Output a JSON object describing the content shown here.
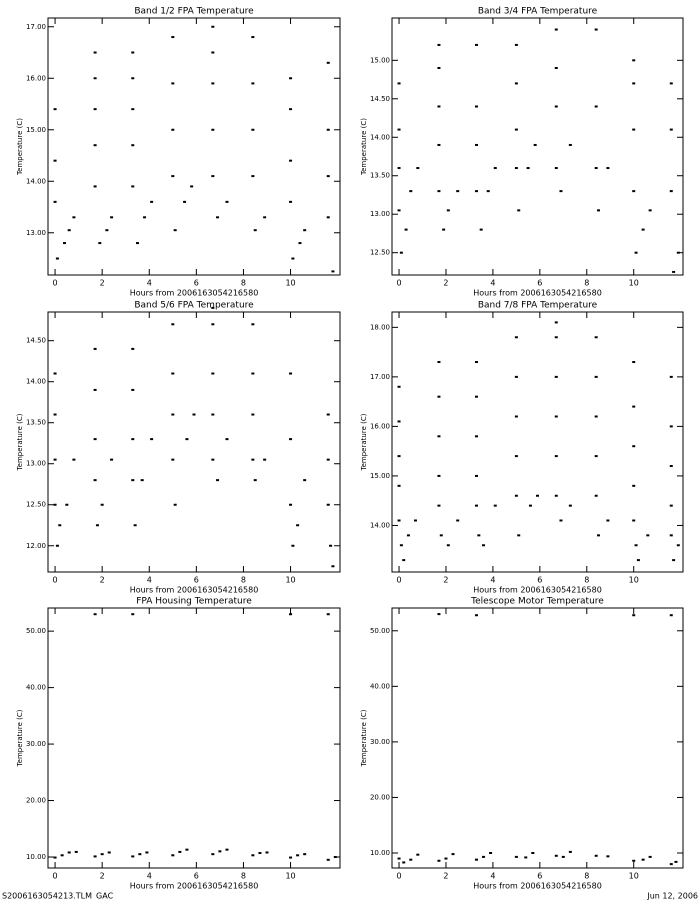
{
  "chart_data": [
    {
      "type": "scatter",
      "title": "Band 1/2 FPA Temperature",
      "xlabel": "Hours from 2006163054216580",
      "ylabel": "Temperature (C)",
      "color": "#000000",
      "xlim": [
        -0.3,
        12.1
      ],
      "xticks": [
        0,
        2,
        4,
        6,
        8,
        10
      ],
      "ylim": [
        12.18,
        17.17
      ],
      "yticks": [
        {
          "value": 13,
          "label": "13.00"
        },
        {
          "value": 14,
          "label": "14.00"
        },
        {
          "value": 15,
          "label": "15.00"
        },
        {
          "value": 16,
          "label": "16.00"
        },
        {
          "value": 17,
          "label": "17.00"
        }
      ],
      "x": [
        0,
        0,
        0,
        0.1,
        0.4,
        0.6,
        0.8,
        1.7,
        1.7,
        1.7,
        1.7,
        1.7,
        1.9,
        2.2,
        2.4,
        3.3,
        3.3,
        3.3,
        3.3,
        3.3,
        3.5,
        3.8,
        4.1,
        5,
        5,
        5,
        5,
        5.1,
        5.5,
        5.8,
        6.7,
        6.7,
        6.7,
        6.7,
        6.7,
        6.9,
        7.3,
        8.4,
        8.4,
        8.4,
        8.4,
        8.5,
        8.9,
        10,
        10,
        10,
        10,
        10.1,
        10.4,
        10.6,
        11.6,
        11.6,
        11.6,
        11.6,
        11.8
      ],
      "values": [
        13.6,
        14.4,
        15.4,
        12.5,
        12.8,
        13.05,
        13.3,
        13.9,
        14.7,
        15.4,
        16,
        16.5,
        12.8,
        13.05,
        13.3,
        13.9,
        14.7,
        15.4,
        16,
        16.5,
        12.8,
        13.3,
        13.6,
        14.1,
        15,
        15.9,
        16.8,
        13.05,
        13.6,
        13.9,
        14.1,
        15,
        15.9,
        16.5,
        17,
        13.3,
        13.6,
        14.1,
        15,
        15.9,
        16.8,
        13.05,
        13.3,
        13.6,
        14.4,
        15.4,
        16,
        12.5,
        12.8,
        13.05,
        13.3,
        14.1,
        15,
        16.3,
        12.25
      ]
    },
    {
      "type": "scatter",
      "title": "Band 3/4 FPA Temperature",
      "xlabel": "Hours from 2006163054216580",
      "ylabel": "Temperature (C)",
      "color": "#000000",
      "xlim": [
        -0.3,
        12.1
      ],
      "xticks": [
        0,
        2,
        4,
        6,
        8,
        10
      ],
      "ylim": [
        12.21,
        15.55
      ],
      "yticks": [
        {
          "value": 12.5,
          "label": "12.50"
        },
        {
          "value": 13,
          "label": "13.00"
        },
        {
          "value": 13.5,
          "label": "13.50"
        },
        {
          "value": 14,
          "label": "14.00"
        },
        {
          "value": 14.5,
          "label": "14.50"
        },
        {
          "value": 15,
          "label": "15.00"
        }
      ],
      "x": [
        0,
        0,
        0,
        0,
        0.1,
        0.3,
        0.5,
        0.8,
        1.7,
        1.7,
        1.7,
        1.7,
        1.7,
        1.9,
        2.1,
        2.5,
        3.3,
        3.3,
        3.3,
        3.3,
        3.5,
        3.8,
        4.1,
        5,
        5,
        5,
        5,
        5.1,
        5.5,
        5.8,
        6.7,
        6.7,
        6.7,
        6.7,
        6.9,
        7.3,
        8.4,
        8.4,
        8.4,
        8.5,
        8.9,
        10,
        10,
        10,
        10,
        10.1,
        10.4,
        10.7,
        11.6,
        11.6,
        11.6,
        11.7,
        11.9
      ],
      "values": [
        13.05,
        13.6,
        14.1,
        14.7,
        12.5,
        12.8,
        13.3,
        13.6,
        13.3,
        13.9,
        14.4,
        14.9,
        15.2,
        12.8,
        13.05,
        13.3,
        13.3,
        13.9,
        14.4,
        15.2,
        12.8,
        13.3,
        13.6,
        13.6,
        14.1,
        14.7,
        15.2,
        13.05,
        13.6,
        13.9,
        13.6,
        14.4,
        14.9,
        15.4,
        13.3,
        13.9,
        13.6,
        14.4,
        15.4,
        13.05,
        13.6,
        13.3,
        14.1,
        14.7,
        15,
        12.5,
        12.8,
        13.05,
        13.3,
        14.1,
        14.7,
        12.25,
        12.5
      ]
    },
    {
      "type": "scatter",
      "title": "Band 5/6 FPA Temperature",
      "xlabel": "Hours from 2006163054216580",
      "ylabel": "Temperature (C)",
      "color": "#000000",
      "xlim": [
        -0.3,
        12.1
      ],
      "xticks": [
        0,
        2,
        4,
        6,
        8,
        10
      ],
      "ylim": [
        11.68,
        14.85
      ],
      "yticks": [
        {
          "value": 12,
          "label": "12.00"
        },
        {
          "value": 12.5,
          "label": "12.50"
        },
        {
          "value": 13,
          "label": "13.00"
        },
        {
          "value": 13.5,
          "label": "13.50"
        },
        {
          "value": 14,
          "label": "14.00"
        },
        {
          "value": 14.5,
          "label": "14.50"
        }
      ],
      "x": [
        0,
        0,
        0,
        0,
        0.1,
        0.2,
        0.5,
        0.8,
        1.7,
        1.7,
        1.7,
        1.7,
        1.8,
        2,
        2.4,
        3.3,
        3.3,
        3.3,
        3.3,
        3.4,
        3.7,
        4.1,
        5,
        5,
        5,
        5,
        5.1,
        5.6,
        5.9,
        6.7,
        6.7,
        6.7,
        6.7,
        6.7,
        6.9,
        7.3,
        8.4,
        8.4,
        8.4,
        8.4,
        8.5,
        8.9,
        10,
        10,
        10,
        10.1,
        10.3,
        10.6,
        11.6,
        11.6,
        11.6,
        11.7,
        11.8
      ],
      "values": [
        12.5,
        13.05,
        13.6,
        14.1,
        12,
        12.25,
        12.5,
        13.05,
        12.8,
        13.3,
        13.9,
        14.4,
        12.25,
        12.5,
        13.05,
        12.8,
        13.3,
        13.9,
        14.4,
        12.25,
        12.8,
        13.3,
        13.05,
        13.6,
        14.1,
        14.7,
        12.5,
        13.3,
        13.6,
        13.05,
        13.6,
        14.1,
        14.7,
        14.9,
        12.8,
        13.3,
        13.05,
        13.6,
        14.1,
        14.7,
        12.8,
        13.05,
        12.5,
        13.3,
        14.1,
        12,
        12.25,
        12.8,
        12.5,
        13.05,
        13.6,
        12,
        11.75
      ]
    },
    {
      "type": "scatter",
      "title": "Band 7/8 FPA Temperature",
      "xlabel": "Hours from 2006163054216580",
      "ylabel": "Temperature (C)",
      "color": "#000000",
      "xlim": [
        -0.3,
        12.1
      ],
      "xticks": [
        0,
        2,
        4,
        6,
        8,
        10
      ],
      "ylim": [
        13.06,
        18.31
      ],
      "yticks": [
        {
          "value": 14,
          "label": "14.00"
        },
        {
          "value": 15,
          "label": "15.00"
        },
        {
          "value": 16,
          "label": "16.00"
        },
        {
          "value": 17,
          "label": "17.00"
        },
        {
          "value": 18,
          "label": "18.00"
        }
      ],
      "x": [
        0,
        0,
        0,
        0,
        0,
        0.1,
        0.2,
        0.4,
        0.7,
        1.7,
        1.7,
        1.7,
        1.7,
        1.7,
        1.8,
        2.1,
        2.5,
        3.3,
        3.3,
        3.3,
        3.3,
        3.3,
        3.4,
        3.6,
        4.1,
        5,
        5,
        5,
        5,
        5,
        5.1,
        5.6,
        5.9,
        6.7,
        6.7,
        6.7,
        6.7,
        6.7,
        6.7,
        6.9,
        7.3,
        8.4,
        8.4,
        8.4,
        8.4,
        8.4,
        8.5,
        8.9,
        10,
        10,
        10,
        10,
        10,
        10.1,
        10.2,
        10.6,
        11.6,
        11.6,
        11.6,
        11.6,
        11.6,
        11.7,
        11.9
      ],
      "values": [
        14.1,
        14.8,
        15.4,
        16.1,
        16.8,
        13.6,
        13.3,
        13.8,
        14.1,
        14.4,
        15,
        15.8,
        16.6,
        17.3,
        13.8,
        13.6,
        14.1,
        14.4,
        15,
        15.8,
        16.6,
        17.3,
        13.8,
        13.6,
        14.4,
        14.6,
        15.4,
        16.2,
        17,
        17.8,
        13.8,
        14.4,
        14.6,
        14.6,
        15.4,
        16.2,
        17,
        17.8,
        18.1,
        14.1,
        14.4,
        14.6,
        15.4,
        16.2,
        17,
        17.8,
        13.8,
        14.1,
        14.1,
        14.8,
        15.6,
        16.4,
        17.3,
        13.6,
        13.3,
        13.8,
        13.8,
        14.4,
        15.2,
        16,
        17,
        13.3,
        13.6
      ]
    },
    {
      "type": "scatter",
      "title": "FPA Housing Temperature",
      "xlabel": "Hours from 2006163054216580",
      "ylabel": "Temperature (C)",
      "color": "#000000",
      "xlim": [
        -0.3,
        12.1
      ],
      "xticks": [
        0,
        2,
        4,
        6,
        8,
        10
      ],
      "ylim": [
        8.05,
        54.1
      ],
      "yticks": [
        {
          "value": 10,
          "label": "10.00"
        },
        {
          "value": 20,
          "label": "20.00"
        },
        {
          "value": 30,
          "label": "30.00"
        },
        {
          "value": 40,
          "label": "40.00"
        },
        {
          "value": 50,
          "label": "50.00"
        }
      ],
      "x": [
        0,
        0.3,
        0.6,
        0.9,
        1.7,
        2,
        2.3,
        3.3,
        3.6,
        3.9,
        5,
        5.3,
        5.6,
        6.7,
        7,
        7.3,
        8.4,
        8.7,
        9,
        10,
        10.3,
        10.6,
        11.6,
        11.9,
        1.7,
        3.3,
        10,
        11.6
      ],
      "values": [
        9.9,
        10.3,
        10.8,
        10.9,
        10.1,
        10.5,
        10.8,
        10.1,
        10.5,
        10.8,
        10.3,
        10.9,
        11.3,
        10.5,
        11,
        11.3,
        10.3,
        10.7,
        10.8,
        9.9,
        10.3,
        10.5,
        9.5,
        10,
        53,
        53,
        53,
        53
      ]
    },
    {
      "type": "scatter",
      "title": "Telescope Motor Temperature",
      "xlabel": "Hours from 2006163054216580",
      "ylabel": "Temperature (C)",
      "color": "#000000",
      "xlim": [
        -0.3,
        12.1
      ],
      "xticks": [
        0,
        2,
        4,
        6,
        8,
        10
      ],
      "ylim": [
        7.3,
        54.1
      ],
      "yticks": [
        {
          "value": 10,
          "label": "10.00"
        },
        {
          "value": 20,
          "label": "20.00"
        },
        {
          "value": 30,
          "label": "30.00"
        },
        {
          "value": 40,
          "label": "40.00"
        },
        {
          "value": 50,
          "label": "50.00"
        }
      ],
      "x": [
        0,
        0.2,
        0.5,
        0.8,
        1.7,
        2,
        2.3,
        3.3,
        3.6,
        3.9,
        5,
        5.4,
        5.7,
        6.7,
        7,
        7.3,
        8.4,
        8.9,
        10,
        10.4,
        10.7,
        11.6,
        11.8,
        1.7,
        3.3,
        10,
        11.6
      ],
      "values": [
        9,
        8.3,
        8.8,
        9.7,
        8.6,
        9,
        9.8,
        8.8,
        9.3,
        10,
        9.3,
        9.2,
        10,
        9.5,
        9.3,
        10.2,
        9.5,
        9.4,
        8.6,
        8.8,
        9.3,
        8,
        8.4,
        53,
        52.8,
        52.8,
        52.8
      ]
    }
  ],
  "footer": {
    "left": "S2006163054213.TLM_GAC",
    "right": "Jun 12, 2006"
  }
}
